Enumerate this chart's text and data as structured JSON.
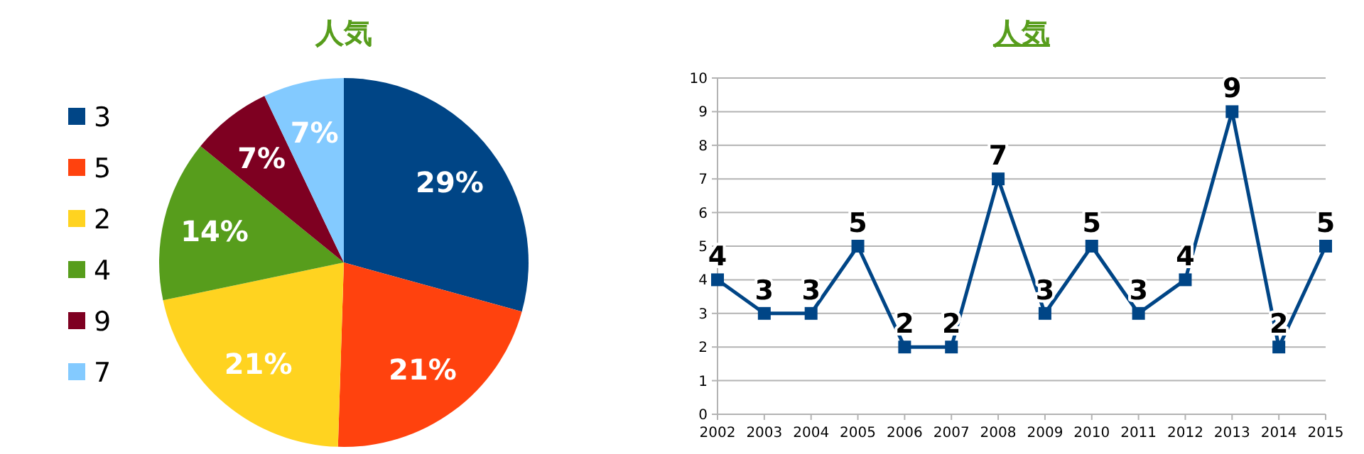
{
  "chart_data": [
    {
      "type": "pie",
      "title": "人気",
      "categories": [
        "3",
        "5",
        "2",
        "4",
        "9",
        "7"
      ],
      "values": [
        29,
        21,
        21,
        14,
        7,
        7
      ],
      "colors": [
        "#004586",
        "#ff420e",
        "#ffd320",
        "#579d1c",
        "#7e0021",
        "#83caff"
      ],
      "value_labels": [
        "29%",
        "21%",
        "21%",
        "14%",
        "7%",
        "7%"
      ],
      "legend": "left"
    },
    {
      "type": "line",
      "title": "人気",
      "categories": [
        "2002",
        "2003",
        "2004",
        "2005",
        "2006",
        "2007",
        "2008",
        "2009",
        "2010",
        "2011",
        "2012",
        "2013",
        "2014",
        "2015"
      ],
      "series": [
        {
          "color": "#004586",
          "values": [
            4,
            3,
            3,
            5,
            2,
            2,
            7,
            3,
            5,
            3,
            4,
            9,
            2,
            5
          ]
        }
      ],
      "ylim": [
        0,
        10
      ],
      "yticks": [
        0,
        1,
        2,
        3,
        4,
        5,
        6,
        7,
        8,
        9,
        10
      ],
      "grid": "y",
      "marker": "square",
      "data_labels": true
    }
  ]
}
